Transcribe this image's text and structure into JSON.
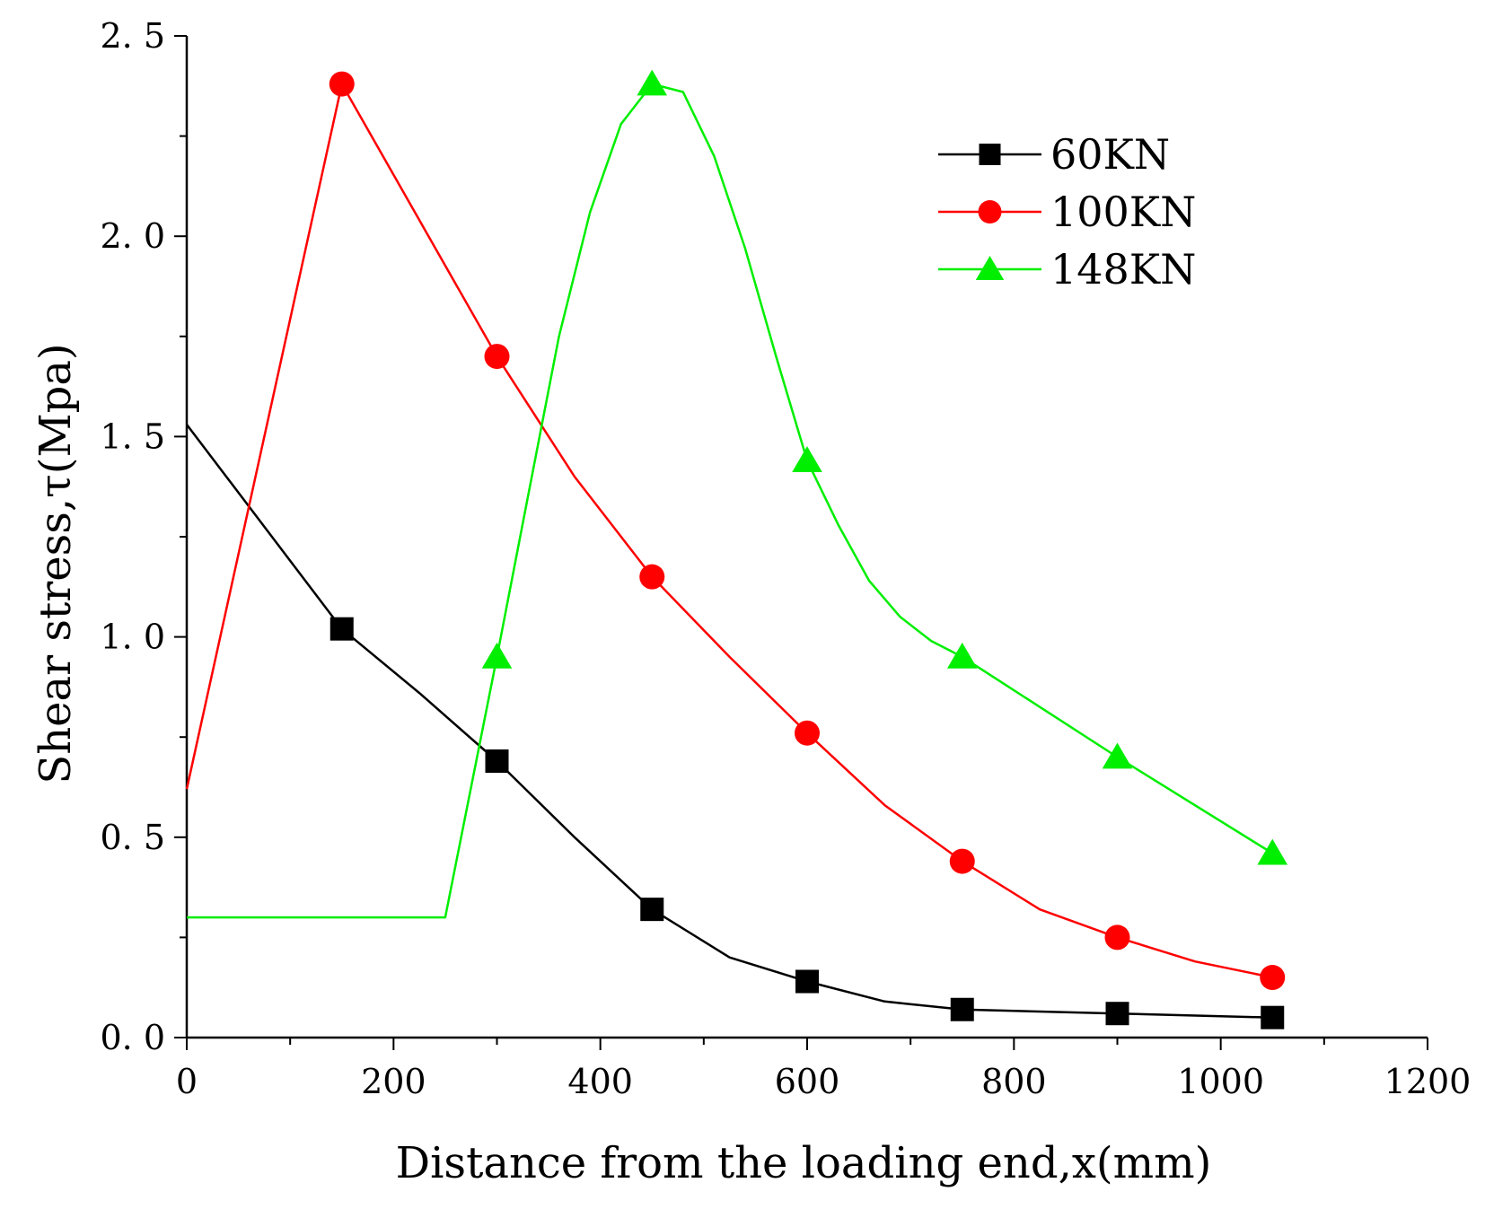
{
  "chart_data": {
    "type": "line",
    "title": "",
    "xlabel": "Distance from the loading end,x(mm)",
    "ylabel": "Shear stress,τ(Mpa)",
    "xlim": [
      0,
      1200
    ],
    "ylim": [
      0,
      2.5
    ],
    "x_ticks": [
      0,
      200,
      400,
      600,
      800,
      1000,
      1200
    ],
    "x_tick_labels": [
      "0",
      "200",
      "400",
      "600",
      "800",
      "1000",
      "1200"
    ],
    "y_ticks": [
      0.0,
      0.5,
      1.0,
      1.5,
      2.0,
      2.5
    ],
    "y_tick_labels": [
      "0. 0",
      "0. 5",
      "1. 0",
      "1. 5",
      "2. 0",
      "2. 5"
    ],
    "grid": false,
    "legend_position": "top-right",
    "series": [
      {
        "name": "60KN",
        "color": "#000000",
        "marker": "square",
        "x": [
          150,
          300,
          450,
          600,
          750,
          900,
          1050
        ],
        "y": [
          1.02,
          0.69,
          0.32,
          0.14,
          0.07,
          0.06,
          0.05
        ],
        "line": [
          [
            0,
            1.53
          ],
          [
            150,
            1.02
          ],
          [
            225,
            0.86
          ],
          [
            300,
            0.69
          ],
          [
            375,
            0.5
          ],
          [
            450,
            0.32
          ],
          [
            525,
            0.2
          ],
          [
            600,
            0.14
          ],
          [
            675,
            0.09
          ],
          [
            750,
            0.07
          ],
          [
            900,
            0.06
          ],
          [
            1050,
            0.05
          ]
        ]
      },
      {
        "name": "100KN",
        "color": "#ff0000",
        "marker": "circle",
        "x": [
          150,
          300,
          450,
          600,
          750,
          900,
          1050
        ],
        "y": [
          2.38,
          1.7,
          1.15,
          0.76,
          0.44,
          0.25,
          0.15
        ],
        "line": [
          [
            0,
            0.62
          ],
          [
            150,
            2.38
          ],
          [
            225,
            2.04
          ],
          [
            300,
            1.7
          ],
          [
            375,
            1.4
          ],
          [
            450,
            1.15
          ],
          [
            525,
            0.95
          ],
          [
            600,
            0.76
          ],
          [
            675,
            0.58
          ],
          [
            750,
            0.44
          ],
          [
            825,
            0.32
          ],
          [
            900,
            0.25
          ],
          [
            975,
            0.19
          ],
          [
            1050,
            0.15
          ]
        ]
      },
      {
        "name": "148KN",
        "color": "#00ee00",
        "marker": "triangle",
        "x": [
          300,
          450,
          600,
          750,
          900,
          1050
        ],
        "y": [
          0.95,
          2.38,
          1.44,
          0.95,
          0.7,
          0.46
        ],
        "line": [
          [
            0,
            0.3
          ],
          [
            250,
            0.3
          ],
          [
            300,
            0.95
          ],
          [
            330,
            1.35
          ],
          [
            360,
            1.75
          ],
          [
            390,
            2.06
          ],
          [
            420,
            2.28
          ],
          [
            450,
            2.38
          ],
          [
            480,
            2.36
          ],
          [
            510,
            2.2
          ],
          [
            540,
            1.97
          ],
          [
            570,
            1.7
          ],
          [
            600,
            1.44
          ],
          [
            630,
            1.28
          ],
          [
            660,
            1.14
          ],
          [
            690,
            1.05
          ],
          [
            720,
            0.99
          ],
          [
            750,
            0.95
          ],
          [
            900,
            0.7
          ],
          [
            1050,
            0.46
          ]
        ]
      }
    ]
  }
}
